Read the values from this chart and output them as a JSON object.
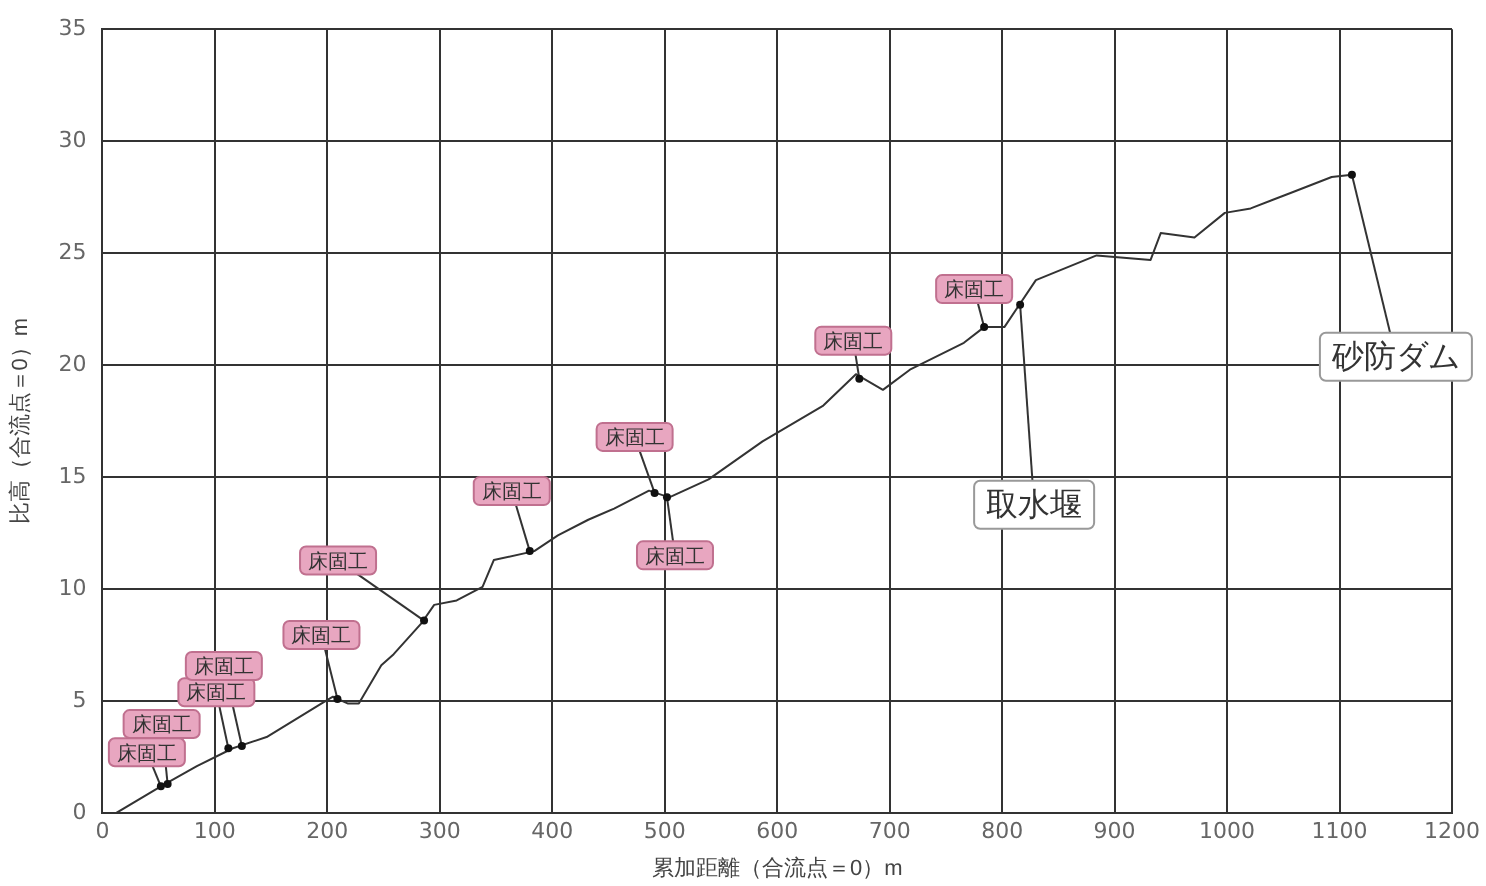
{
  "chart_data": {
    "type": "line",
    "xlabel": "累加距離（合流点＝0）m",
    "ylabel": "比高（合流点＝0）m",
    "x": [
      0,
      12,
      52,
      84,
      116,
      146,
      195,
      205,
      218,
      228,
      248,
      259,
      284,
      295,
      315,
      338,
      348,
      384,
      405,
      432,
      455,
      486,
      504,
      539,
      587,
      641,
      670,
      694,
      718,
      766,
      784,
      802,
      830,
      884,
      932,
      941,
      971,
      998,
      1021,
      1057,
      1093,
      1111
    ],
    "series": [
      {
        "color": "#333333",
        "values": [
          0,
          0,
          1.2,
          2.1,
          2.9,
          3.4,
          4.9,
          5.2,
          4.9,
          4.9,
          6.6,
          7.1,
          8.5,
          9.3,
          9.5,
          10.1,
          11.3,
          11.7,
          12.4,
          13.1,
          13.6,
          14.4,
          14.1,
          14.9,
          16.6,
          18.2,
          19.6,
          18.9,
          19.8,
          21.0,
          21.7,
          21.7,
          23.8,
          24.9,
          24.7,
          25.9,
          25.7,
          26.8,
          27.0,
          27.7,
          28.4,
          28.5
        ]
      }
    ],
    "xlim": [
      0,
      1200
    ],
    "xticks": [
      0,
      100,
      200,
      300,
      400,
      500,
      600,
      700,
      800,
      900,
      1000,
      1100,
      1200
    ],
    "ylim": [
      0,
      35
    ],
    "yticks": [
      0,
      5,
      10,
      15,
      20,
      25,
      30,
      35
    ],
    "grid": true,
    "legend": false,
    "marker": "none",
    "line_style": "solid",
    "annotations": [
      {
        "text": "床固工",
        "x": 52,
        "y": 1.2
      },
      {
        "text": "床固工",
        "x": 58,
        "y": 1.3
      },
      {
        "text": "床固工",
        "x": 112,
        "y": 2.9
      },
      {
        "text": "床固工",
        "x": 124,
        "y": 3.0
      },
      {
        "text": "床固工",
        "x": 209,
        "y": 5.1
      },
      {
        "text": "床固工",
        "x": 286,
        "y": 8.6
      },
      {
        "text": "床固工",
        "x": 380,
        "y": 11.7
      },
      {
        "text": "床固工",
        "x": 491,
        "y": 14.3
      },
      {
        "text": "床固工",
        "x": 502,
        "y": 14.1
      },
      {
        "text": "床固工",
        "x": 673,
        "y": 19.4
      },
      {
        "text": "床固工",
        "x": 784,
        "y": 21.7
      },
      {
        "text": "取水堰",
        "x": 816,
        "y": 22.7
      },
      {
        "text": "砂防ダム",
        "x": 1111,
        "y": 28.5
      }
    ]
  }
}
